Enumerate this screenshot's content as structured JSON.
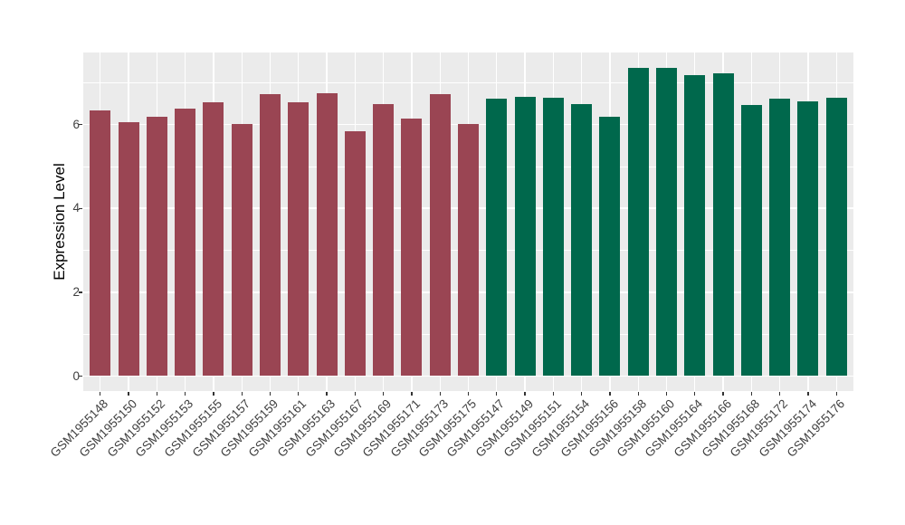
{
  "chart_data": {
    "type": "bar",
    "title": "",
    "xlabel": "",
    "ylabel": "Expression Level",
    "ylim": [
      0,
      7.7
    ],
    "yticks": [
      0,
      2,
      4,
      6
    ],
    "yticks_minor": [
      1,
      3,
      5,
      7
    ],
    "grid": "white major and minor horizontal lines plus vertical category lines on grey panel",
    "legend_position": "none",
    "panel_background": "#ebebeb",
    "gridline_color": "#ffffff",
    "axis_text_color": "#404040",
    "axis_title_color": "#000000",
    "categories": [
      "GSM1955148",
      "GSM1955150",
      "GSM1955152",
      "GSM1955153",
      "GSM1955155",
      "GSM1955157",
      "GSM1955159",
      "GSM1955161",
      "GSM1955163",
      "GSM1955167",
      "GSM1955169",
      "GSM1955171",
      "GSM1955173",
      "GSM1955175",
      "GSM1955147",
      "GSM1955149",
      "GSM1955151",
      "GSM1955154",
      "GSM1955156",
      "GSM1955158",
      "GSM1955160",
      "GSM1955164",
      "GSM1955166",
      "GSM1955168",
      "GSM1955172",
      "GSM1955174",
      "GSM1955176"
    ],
    "values": [
      6.33,
      6.05,
      6.19,
      6.38,
      6.53,
      6.02,
      6.72,
      6.54,
      6.74,
      5.84,
      6.49,
      6.14,
      6.73,
      6.01,
      6.61,
      6.65,
      6.63,
      6.48,
      6.18,
      7.36,
      7.36,
      7.17,
      7.23,
      6.47,
      6.62,
      6.56,
      6.64
    ],
    "groups": [
      "A",
      "A",
      "A",
      "A",
      "A",
      "A",
      "A",
      "A",
      "A",
      "A",
      "A",
      "A",
      "A",
      "A",
      "B",
      "B",
      "B",
      "B",
      "B",
      "B",
      "B",
      "B",
      "B",
      "B",
      "B",
      "B",
      "B"
    ],
    "group_colors": {
      "A": "#9a4553",
      "B": "#00684c"
    }
  }
}
